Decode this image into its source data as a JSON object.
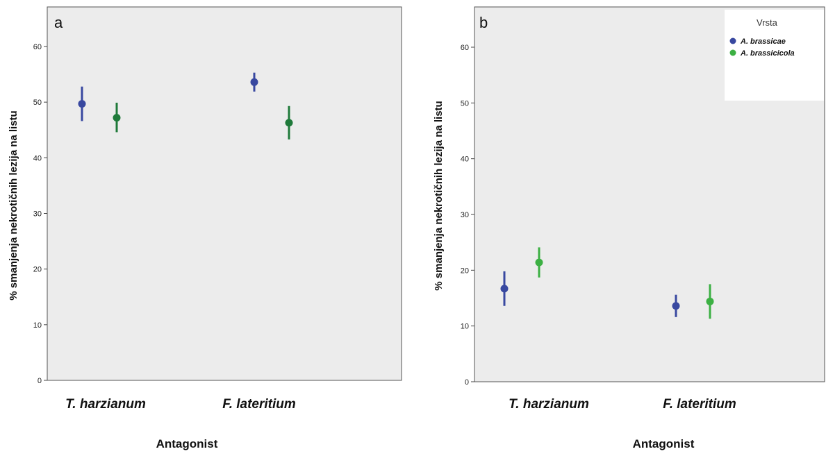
{
  "chart_data": [
    {
      "type": "scatter",
      "panel": "a",
      "categories": [
        "T. harzianum",
        "F. lateritium"
      ],
      "xlabel": "Antagonist",
      "ylabel": "% smanjenja nekrotičnih lezija na listu",
      "ylim": [
        0,
        65
      ],
      "yticks": [
        0,
        10,
        20,
        30,
        40,
        50,
        60
      ],
      "grid": false,
      "error_bars": true,
      "series": [
        {
          "name": "A. brassicae",
          "color": "#3848a0",
          "values": [
            49.7,
            53.6
          ],
          "error_low": [
            46.6,
            51.9
          ],
          "error_high": [
            52.8,
            55.3
          ]
        },
        {
          "name": "A. brassicicola",
          "color": "#1f7a3a",
          "values": [
            47.2,
            46.3
          ],
          "error_low": [
            44.6,
            43.3
          ],
          "error_high": [
            49.9,
            49.3
          ]
        }
      ]
    },
    {
      "type": "scatter",
      "panel": "b",
      "categories": [
        "T. harzianum",
        "F. lateritium"
      ],
      "xlabel": "Antagonist",
      "ylabel": "% smanjenja nekrotičnih lezija na listu",
      "ylim": [
        0,
        65
      ],
      "yticks": [
        0,
        10,
        20,
        30,
        40,
        50,
        60
      ],
      "grid": false,
      "error_bars": true,
      "legend": {
        "title": "Vrsta",
        "position": "top-right",
        "entries": [
          "A. brassicae",
          "A. brassicicola"
        ]
      },
      "series": [
        {
          "name": "A. brassicae",
          "color": "#3848a0",
          "values": [
            16.7,
            13.6
          ],
          "error_low": [
            13.6,
            11.6
          ],
          "error_high": [
            19.8,
            15.6
          ]
        },
        {
          "name": "A. brassicicola",
          "color": "#3cb043",
          "values": [
            21.4,
            14.4
          ],
          "error_low": [
            18.7,
            11.3
          ],
          "error_high": [
            24.1,
            17.5
          ]
        }
      ]
    }
  ]
}
